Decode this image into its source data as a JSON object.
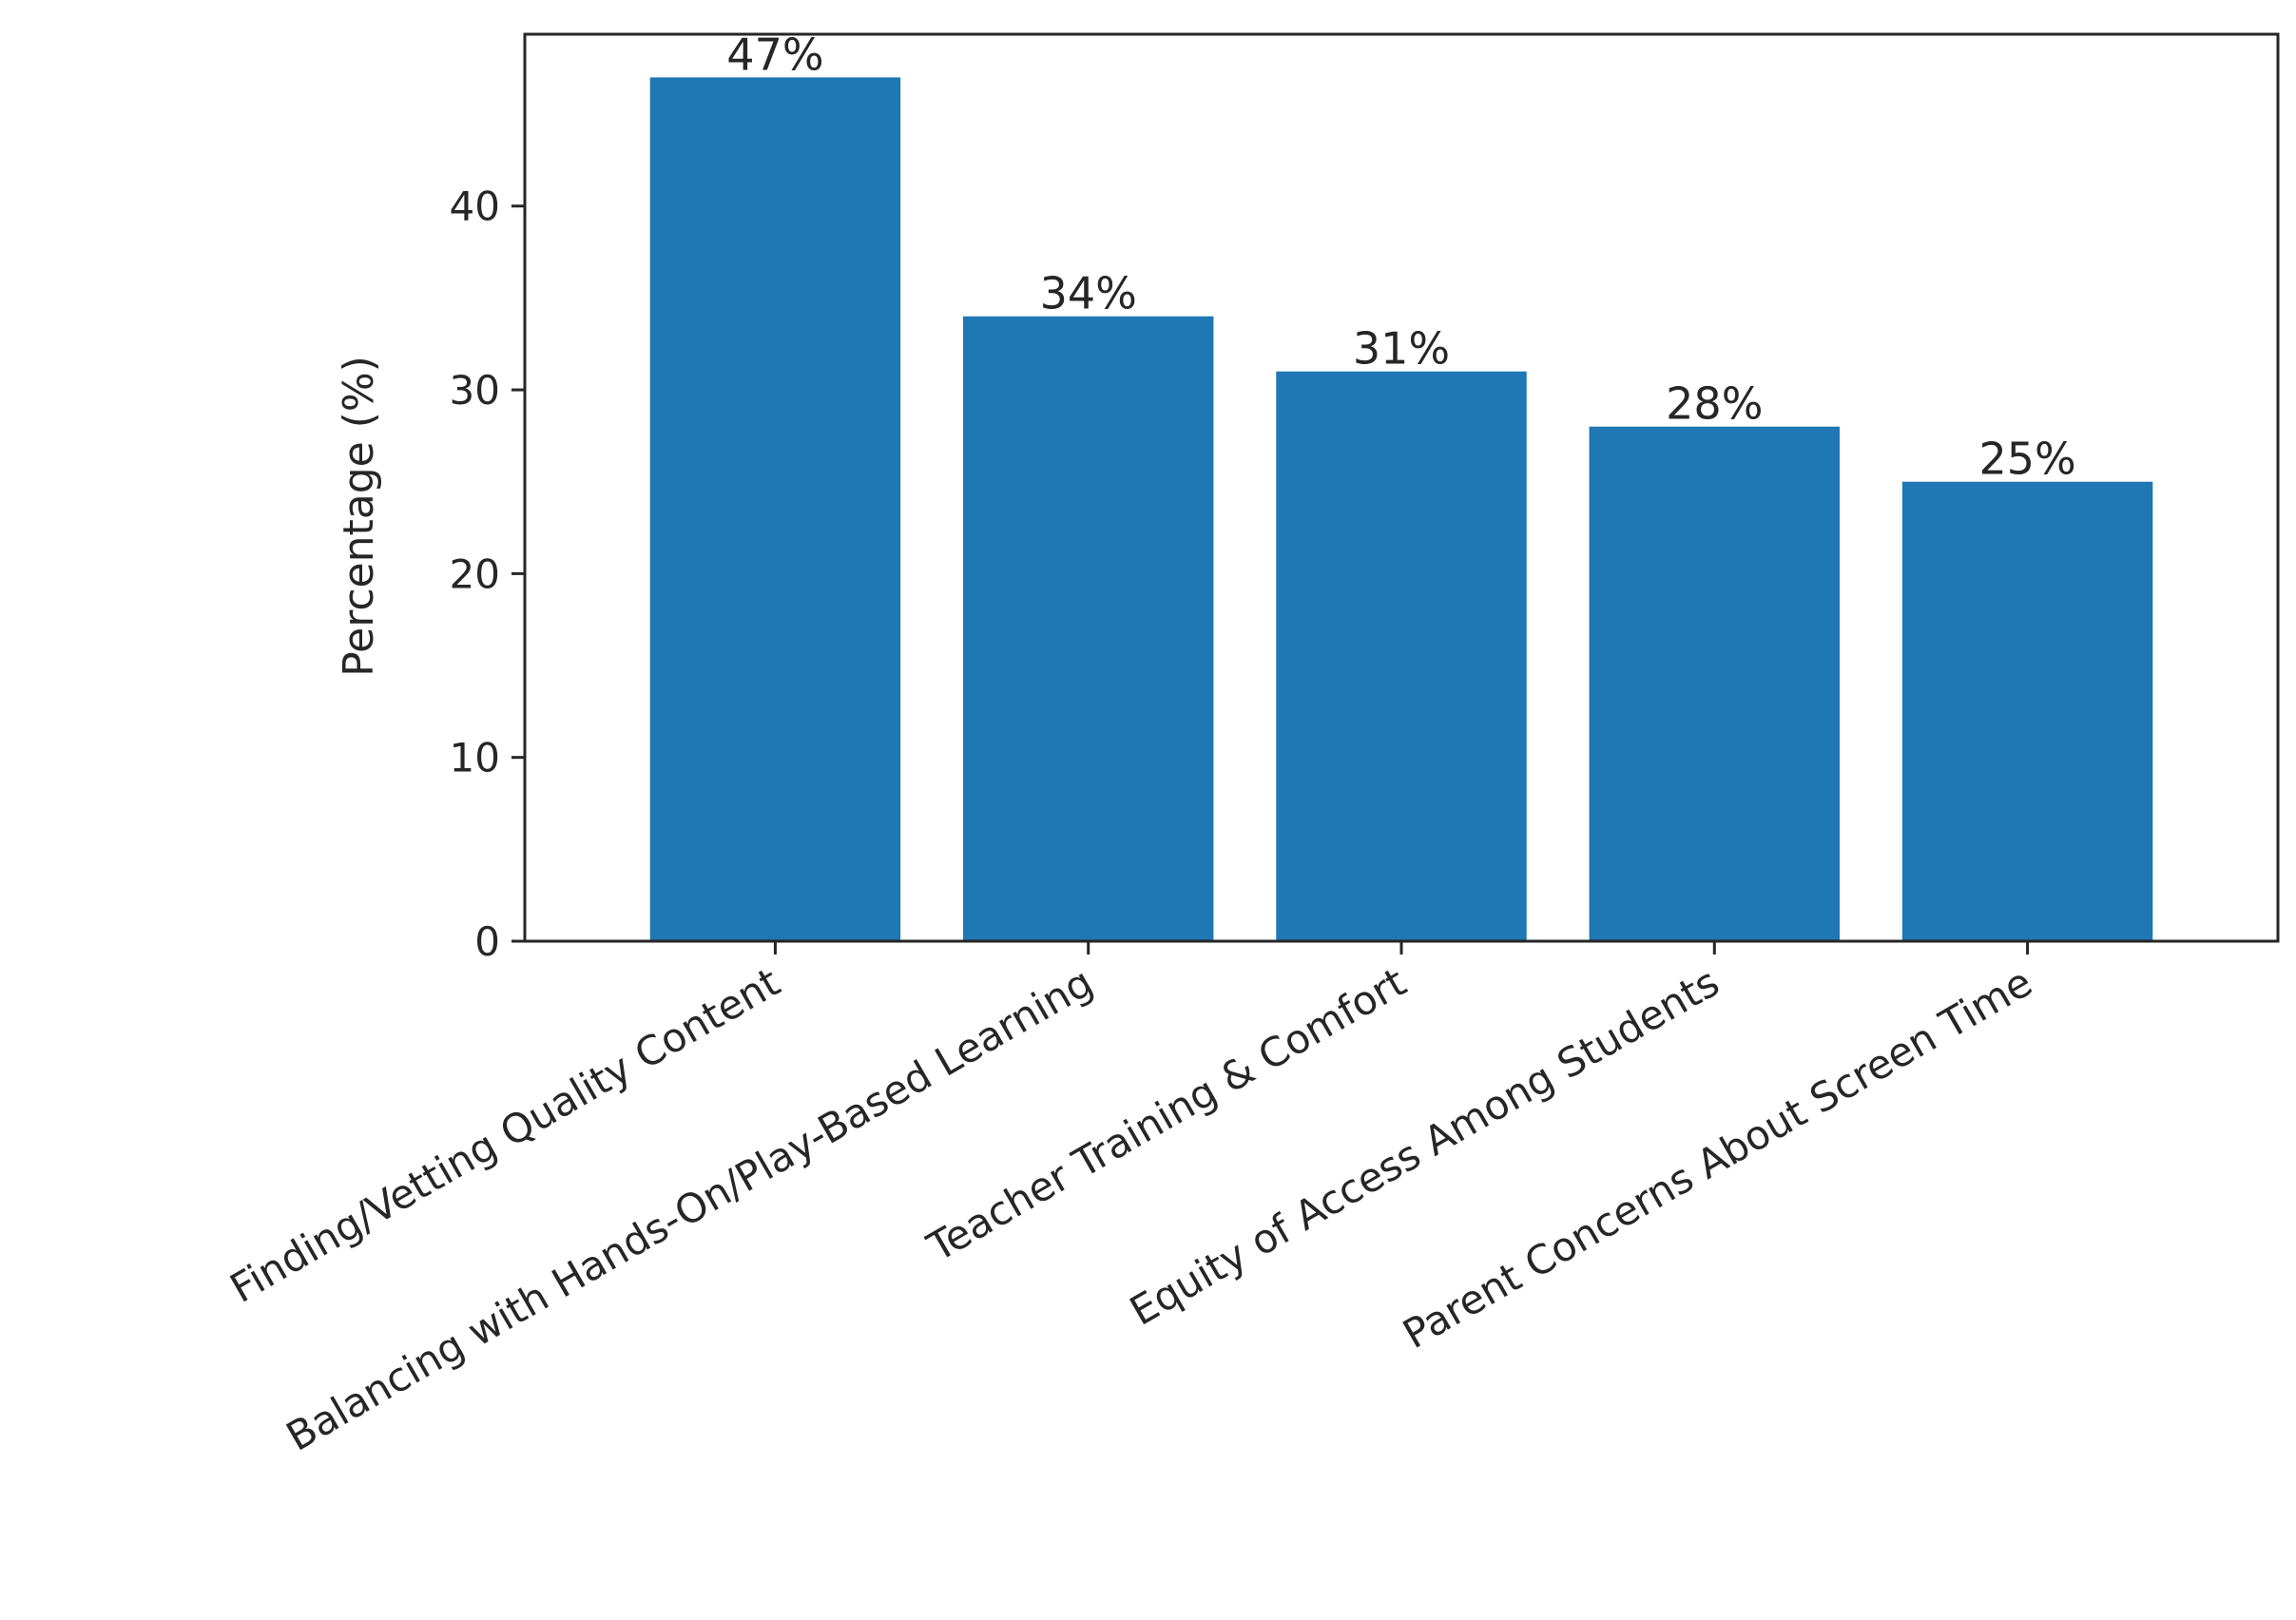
{
  "chart_data": {
    "type": "bar",
    "categories": [
      "Finding/Vetting Quality Content",
      "Balancing with Hands-On/Play-Based Learning",
      "Teacher Training & Comfort",
      "Equity of Access Among Students",
      "Parent Concerns About Screen Time"
    ],
    "values": [
      47,
      34,
      31,
      28,
      25
    ],
    "data_labels": [
      "47%",
      "34%",
      "31%",
      "28%",
      "25%"
    ],
    "title": "",
    "xlabel": "",
    "ylabel": "Percentage (%)",
    "ylim": [
      0,
      49.35
    ],
    "yticks": [
      0,
      10,
      20,
      30,
      40
    ],
    "grid": false,
    "bar_color": "#1f77b4"
  }
}
